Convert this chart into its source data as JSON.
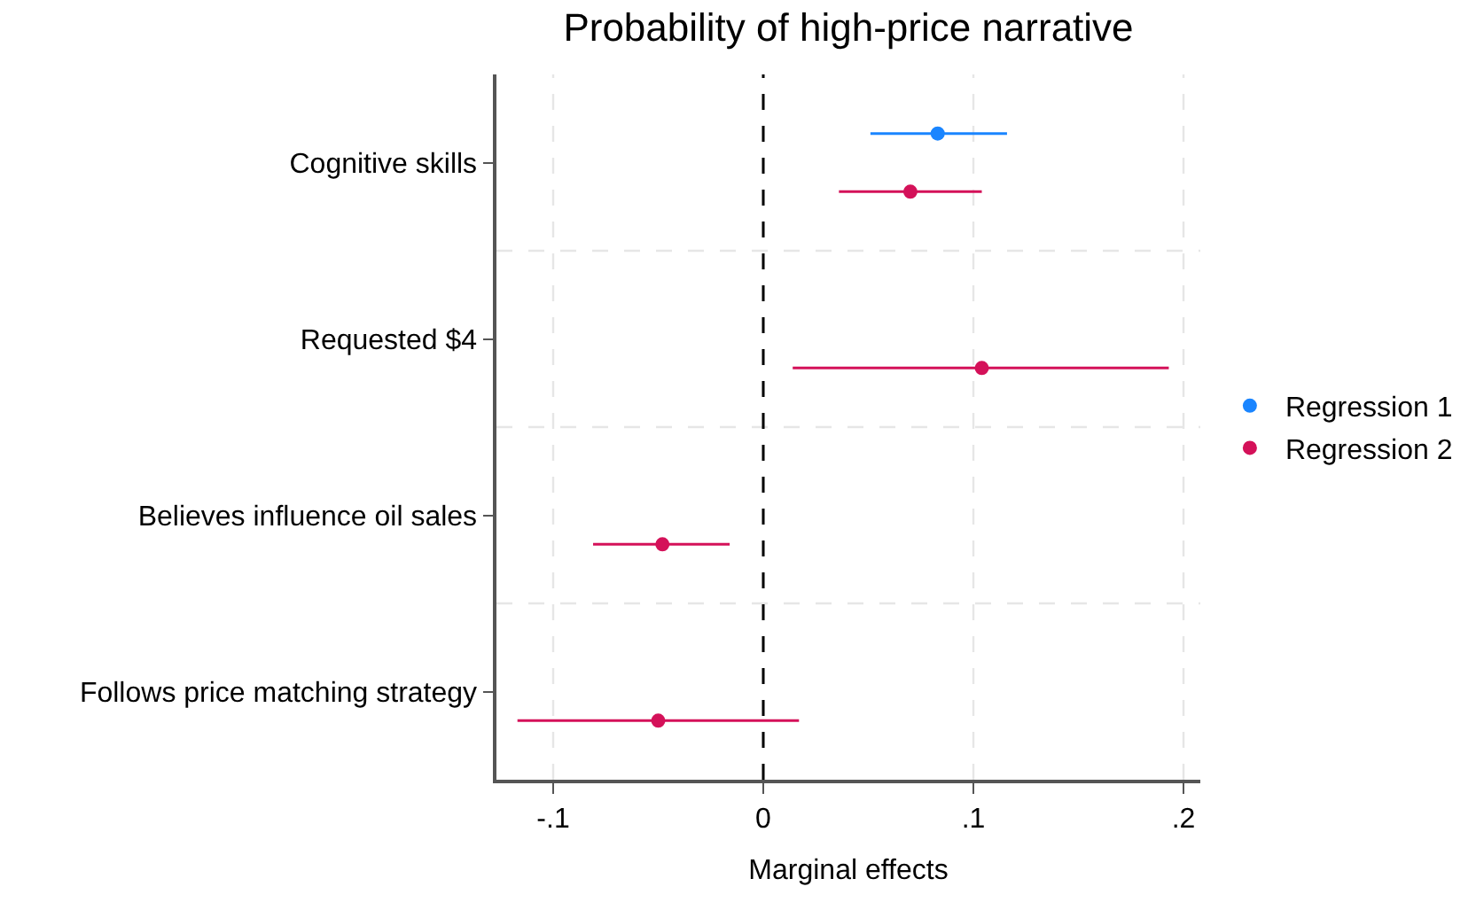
{
  "chart_data": {
    "type": "scatter",
    "orientation": "horizontal",
    "title": "Probability of high-price narrative",
    "xlabel": "Marginal effects",
    "categories": [
      "Cognitive skills",
      "Requested $4",
      "Believes influence oil sales",
      "Follows price matching strategy"
    ],
    "series": [
      {
        "name": "Regression 1",
        "color": "#1a85ff",
        "values": [
          0.083,
          null,
          null,
          null
        ],
        "errors": [
          [
            0.051,
            0.116
          ],
          null,
          null,
          null
        ]
      },
      {
        "name": "Regression 2",
        "color": "#d41159",
        "values": [
          0.07,
          0.104,
          -0.048,
          -0.05
        ],
        "errors": [
          [
            0.036,
            0.104
          ],
          [
            0.014,
            0.193
          ],
          [
            -0.081,
            -0.016
          ],
          [
            -0.117,
            0.017
          ]
        ]
      }
    ],
    "xlim": [
      -0.127,
      0.208
    ],
    "xticks": [
      {
        "value": -0.1,
        "label": "-.1"
      },
      0,
      {
        "value": 0.1,
        "label": ".1"
      },
      {
        "value": 0.2,
        "label": ".2"
      }
    ],
    "ref_lines": [
      {
        "axis": "x",
        "value": 0,
        "color": "#000000",
        "line_style": "dashed"
      }
    ],
    "grid": true,
    "legend": "right",
    "marker": "circle"
  }
}
